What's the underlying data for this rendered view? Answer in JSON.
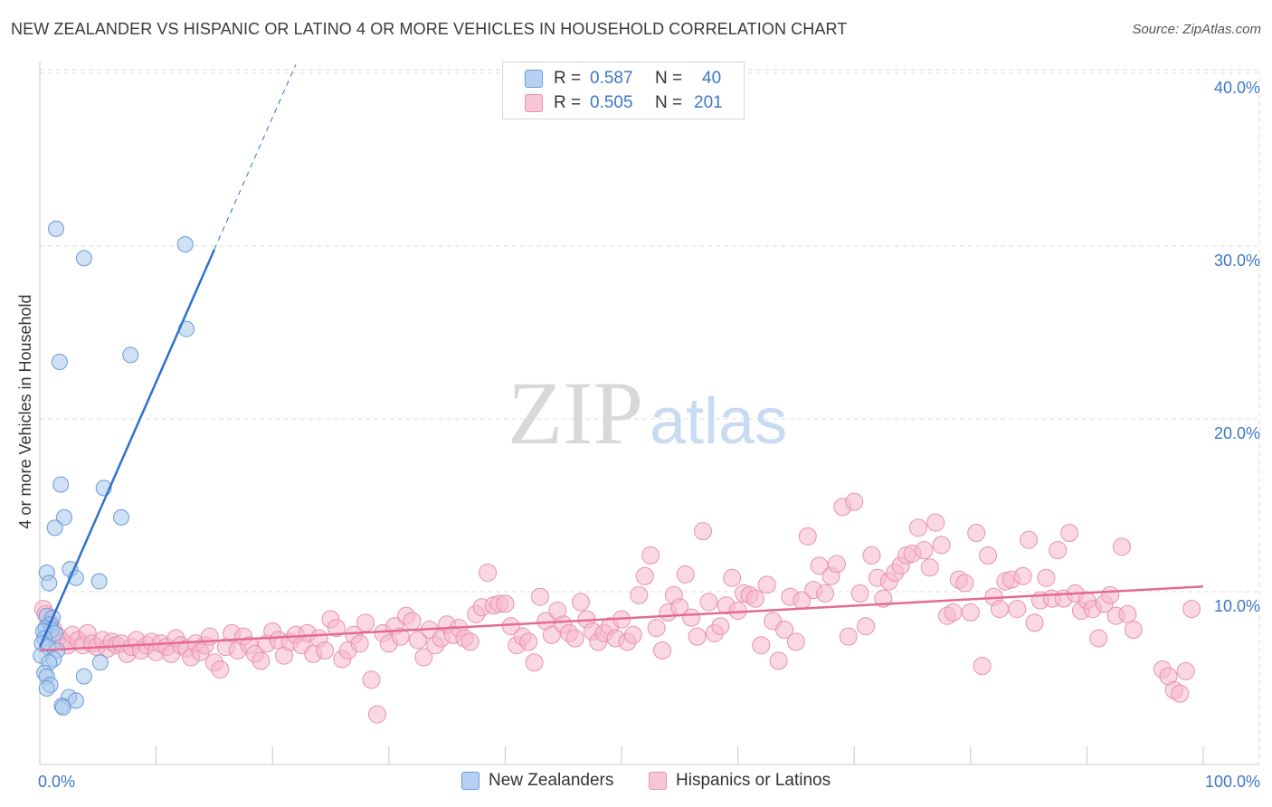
{
  "title": "NEW ZEALANDER VS HISPANIC OR LATINO 4 OR MORE VEHICLES IN HOUSEHOLD CORRELATION CHART",
  "source": "Source: ZipAtlas.com",
  "watermark": {
    "zip": "ZIP",
    "atlas": "atlas"
  },
  "legend": {
    "rows": [
      {
        "r_label": "R =",
        "r_value": "0.587",
        "n_label": "N =",
        "n_value": "40"
      },
      {
        "r_label": "R =",
        "r_value": "0.505",
        "n_label": "N =",
        "n_value": "201"
      }
    ]
  },
  "bottom_legend": {
    "series1": "New Zealanders",
    "series2": "Hispanics or Latinos"
  },
  "colors": {
    "series1_fill": "#aac8ef",
    "series1_stroke": "#6a9ad8",
    "series1_line": "#2f72cc",
    "series2_fill": "#f6b8cc",
    "series2_stroke": "#e892ad",
    "series2_line": "#e46a94",
    "axis_label": "#3c78c8",
    "grid": "#dddddd"
  },
  "chart_data": {
    "type": "scatter",
    "title": "NEW ZEALANDER VS HISPANIC OR LATINO 4 OR MORE VEHICLES IN HOUSEHOLD CORRELATION CHART",
    "xlabel": "",
    "ylabel": "4 or more Vehicles in Household",
    "xlim": [
      0,
      100
    ],
    "ylim": [
      0,
      42
    ],
    "x_tick_labels": [
      "0.0%",
      "100.0%"
    ],
    "y_ticks": [
      10,
      20,
      30,
      40
    ],
    "y_tick_labels": [
      "10.0%",
      "20.0%",
      "30.0%",
      "40.0%"
    ],
    "grid": true,
    "legend_position": "top-center",
    "series": [
      {
        "name": "New Zealanders",
        "R": 0.587,
        "N": 40,
        "trend": {
          "x0": 0,
          "y0": 6.8,
          "x1": 15,
          "y1": 29.8,
          "dashed_to_x": 22,
          "dashed_to_y": 40.5
        },
        "points": [
          [
            1.4,
            31
          ],
          [
            3.8,
            29.3
          ],
          [
            12.5,
            30.1
          ],
          [
            12.6,
            25.2
          ],
          [
            7.8,
            23.7
          ],
          [
            1.7,
            23.3
          ],
          [
            1.8,
            16.2
          ],
          [
            5.5,
            16
          ],
          [
            7,
            14.3
          ],
          [
            2.1,
            14.3
          ],
          [
            1.3,
            13.7
          ],
          [
            2.6,
            11.3
          ],
          [
            0.6,
            11.1
          ],
          [
            3.1,
            10.8
          ],
          [
            5.1,
            10.6
          ],
          [
            0.8,
            10.5
          ],
          [
            0.6,
            8.6
          ],
          [
            1.1,
            8.5
          ],
          [
            0.9,
            8.1
          ],
          [
            0.5,
            7.9
          ],
          [
            1.0,
            7.8
          ],
          [
            0.3,
            7.7
          ],
          [
            1.3,
            7.6
          ],
          [
            0.4,
            7.3
          ],
          [
            0.2,
            7.0
          ],
          [
            0.7,
            6.8
          ],
          [
            1.5,
            6.6
          ],
          [
            0.1,
            6.3
          ],
          [
            1.2,
            6.1
          ],
          [
            0.8,
            5.9
          ],
          [
            5.2,
            5.9
          ],
          [
            0.4,
            5.3
          ],
          [
            0.6,
            5.1
          ],
          [
            3.8,
            5.1
          ],
          [
            0.9,
            4.6
          ],
          [
            0.6,
            4.4
          ],
          [
            2.5,
            3.9
          ],
          [
            3.1,
            3.7
          ],
          [
            1.9,
            3.4
          ],
          [
            2.0,
            3.3
          ]
        ]
      },
      {
        "name": "Hispanics or Latinos",
        "R": 0.505,
        "N": 201,
        "trend": {
          "x0": 0,
          "y0": 6.6,
          "x1": 100,
          "y1": 10.3
        },
        "points": [
          [
            0.3,
            9.0
          ],
          [
            0.5,
            8.7
          ],
          [
            0.9,
            8.2
          ],
          [
            1.2,
            7.8
          ],
          [
            1.6,
            7.4
          ],
          [
            2.0,
            7.1
          ],
          [
            2.4,
            6.9
          ],
          [
            2.8,
            7.5
          ],
          [
            3.3,
            7.2
          ],
          [
            3.7,
            6.9
          ],
          [
            4.1,
            7.6
          ],
          [
            4.5,
            7.0
          ],
          [
            4.9,
            6.8
          ],
          [
            5.4,
            7.2
          ],
          [
            5.8,
            6.7
          ],
          [
            6.2,
            7.1
          ],
          [
            6.6,
            6.9
          ],
          [
            7.0,
            7.0
          ],
          [
            7.5,
            6.4
          ],
          [
            7.9,
            6.8
          ],
          [
            8.3,
            7.2
          ],
          [
            8.7,
            6.6
          ],
          [
            9.2,
            6.9
          ],
          [
            9.6,
            7.1
          ],
          [
            10.0,
            6.5
          ],
          [
            10.4,
            7.0
          ],
          [
            10.9,
            6.8
          ],
          [
            11.3,
            6.4
          ],
          [
            11.7,
            7.3
          ],
          [
            12.1,
            6.9
          ],
          [
            12.6,
            6.7
          ],
          [
            13.0,
            6.2
          ],
          [
            13.4,
            7.0
          ],
          [
            13.8,
            6.5
          ],
          [
            14.2,
            6.9
          ],
          [
            14.6,
            7.4
          ],
          [
            15.0,
            5.9
          ],
          [
            15.5,
            5.5
          ],
          [
            16.0,
            6.8
          ],
          [
            16.5,
            7.6
          ],
          [
            17.0,
            6.6
          ],
          [
            17.5,
            7.4
          ],
          [
            18.0,
            6.9
          ],
          [
            18.5,
            6.4
          ],
          [
            19.0,
            6.0
          ],
          [
            19.5,
            7.0
          ],
          [
            20.0,
            7.7
          ],
          [
            20.5,
            7.2
          ],
          [
            21.0,
            6.3
          ],
          [
            21.5,
            7.1
          ],
          [
            22.0,
            7.5
          ],
          [
            22.5,
            6.9
          ],
          [
            23.0,
            7.6
          ],
          [
            23.5,
            6.4
          ],
          [
            24.0,
            7.3
          ],
          [
            24.5,
            6.6
          ],
          [
            25.0,
            8.4
          ],
          [
            25.5,
            7.9
          ],
          [
            26.0,
            6.1
          ],
          [
            26.5,
            6.6
          ],
          [
            27.0,
            7.5
          ],
          [
            27.5,
            7.0
          ],
          [
            28.0,
            8.2
          ],
          [
            28.5,
            4.9
          ],
          [
            29.0,
            2.9
          ],
          [
            29.5,
            7.6
          ],
          [
            30.0,
            7.0
          ],
          [
            30.5,
            8.0
          ],
          [
            31.0,
            7.4
          ],
          [
            31.5,
            8.6
          ],
          [
            32.0,
            8.3
          ],
          [
            32.5,
            7.2
          ],
          [
            33.0,
            6.2
          ],
          [
            33.5,
            7.8
          ],
          [
            34.0,
            6.9
          ],
          [
            34.5,
            7.3
          ],
          [
            35.0,
            8.1
          ],
          [
            35.5,
            7.5
          ],
          [
            36.0,
            7.9
          ],
          [
            36.5,
            7.3
          ],
          [
            37.0,
            7.1
          ],
          [
            37.5,
            8.7
          ],
          [
            38.0,
            9.1
          ],
          [
            38.5,
            11.1
          ],
          [
            39.0,
            9.2
          ],
          [
            39.5,
            9.3
          ],
          [
            40.0,
            9.3
          ],
          [
            40.5,
            8.0
          ],
          [
            41.0,
            6.9
          ],
          [
            41.5,
            7.4
          ],
          [
            42.0,
            7.1
          ],
          [
            42.5,
            5.9
          ],
          [
            43.0,
            9.7
          ],
          [
            43.5,
            8.3
          ],
          [
            44.0,
            7.5
          ],
          [
            44.5,
            8.9
          ],
          [
            45.0,
            8.1
          ],
          [
            45.5,
            7.6
          ],
          [
            46.0,
            7.3
          ],
          [
            46.5,
            9.4
          ],
          [
            47.0,
            8.4
          ],
          [
            47.5,
            7.7
          ],
          [
            48.0,
            7.1
          ],
          [
            48.5,
            7.6
          ],
          [
            49.0,
            8.0
          ],
          [
            49.5,
            7.3
          ],
          [
            50.0,
            8.4
          ],
          [
            50.5,
            7.1
          ],
          [
            51.0,
            7.5
          ],
          [
            51.5,
            9.8
          ],
          [
            52.0,
            10.9
          ],
          [
            52.5,
            12.1
          ],
          [
            53.0,
            7.9
          ],
          [
            53.5,
            6.6
          ],
          [
            54.0,
            8.8
          ],
          [
            54.5,
            9.8
          ],
          [
            55.0,
            9.1
          ],
          [
            55.5,
            11.0
          ],
          [
            56.0,
            8.5
          ],
          [
            56.5,
            7.4
          ],
          [
            57.0,
            13.5
          ],
          [
            57.5,
            9.4
          ],
          [
            58.0,
            7.6
          ],
          [
            58.5,
            8.0
          ],
          [
            59.0,
            9.2
          ],
          [
            59.5,
            10.8
          ],
          [
            60.0,
            8.9
          ],
          [
            60.5,
            9.9
          ],
          [
            61.0,
            9.8
          ],
          [
            61.5,
            9.6
          ],
          [
            62.0,
            6.9
          ],
          [
            62.5,
            10.4
          ],
          [
            63.0,
            8.3
          ],
          [
            63.5,
            6.0
          ],
          [
            64.0,
            7.8
          ],
          [
            64.5,
            9.7
          ],
          [
            65.0,
            7.1
          ],
          [
            65.5,
            9.5
          ],
          [
            66.0,
            13.2
          ],
          [
            66.5,
            10.1
          ],
          [
            67.0,
            11.5
          ],
          [
            67.5,
            9.9
          ],
          [
            68.0,
            10.9
          ],
          [
            68.5,
            11.6
          ],
          [
            69.0,
            14.9
          ],
          [
            69.5,
            7.4
          ],
          [
            70.0,
            15.2
          ],
          [
            70.5,
            9.9
          ],
          [
            71.0,
            8.0
          ],
          [
            71.5,
            12.1
          ],
          [
            72.0,
            10.8
          ],
          [
            72.5,
            9.6
          ],
          [
            73.0,
            10.6
          ],
          [
            73.5,
            11.1
          ],
          [
            74.0,
            11.5
          ],
          [
            74.5,
            12.1
          ],
          [
            75.0,
            12.2
          ],
          [
            75.5,
            13.7
          ],
          [
            76.0,
            12.4
          ],
          [
            76.5,
            11.4
          ],
          [
            77.0,
            14.0
          ],
          [
            77.5,
            12.7
          ],
          [
            78.0,
            8.6
          ],
          [
            78.5,
            8.8
          ],
          [
            79.0,
            10.7
          ],
          [
            79.5,
            10.5
          ],
          [
            80.0,
            8.8
          ],
          [
            80.5,
            13.4
          ],
          [
            81.0,
            5.7
          ],
          [
            81.5,
            12.1
          ],
          [
            82.0,
            9.7
          ],
          [
            82.5,
            9.0
          ],
          [
            83.0,
            10.6
          ],
          [
            83.5,
            10.7
          ],
          [
            84.0,
            9.0
          ],
          [
            84.5,
            10.9
          ],
          [
            85.0,
            13.0
          ],
          [
            85.5,
            8.2
          ],
          [
            86.0,
            9.5
          ],
          [
            86.5,
            10.8
          ],
          [
            87.0,
            9.6
          ],
          [
            87.5,
            12.4
          ],
          [
            88.0,
            9.6
          ],
          [
            88.5,
            13.4
          ],
          [
            89.0,
            9.9
          ],
          [
            89.5,
            8.9
          ],
          [
            90.0,
            9.5
          ],
          [
            90.5,
            9.0
          ],
          [
            91.0,
            7.3
          ],
          [
            91.5,
            9.3
          ],
          [
            92.0,
            9.8
          ],
          [
            92.5,
            8.6
          ],
          [
            93.0,
            12.6
          ],
          [
            93.5,
            8.7
          ],
          [
            94.0,
            7.8
          ],
          [
            96.5,
            5.5
          ],
          [
            97.0,
            5.1
          ],
          [
            97.5,
            4.3
          ],
          [
            98.0,
            4.1
          ],
          [
            98.5,
            5.4
          ],
          [
            99.0,
            9.0
          ]
        ]
      }
    ]
  }
}
